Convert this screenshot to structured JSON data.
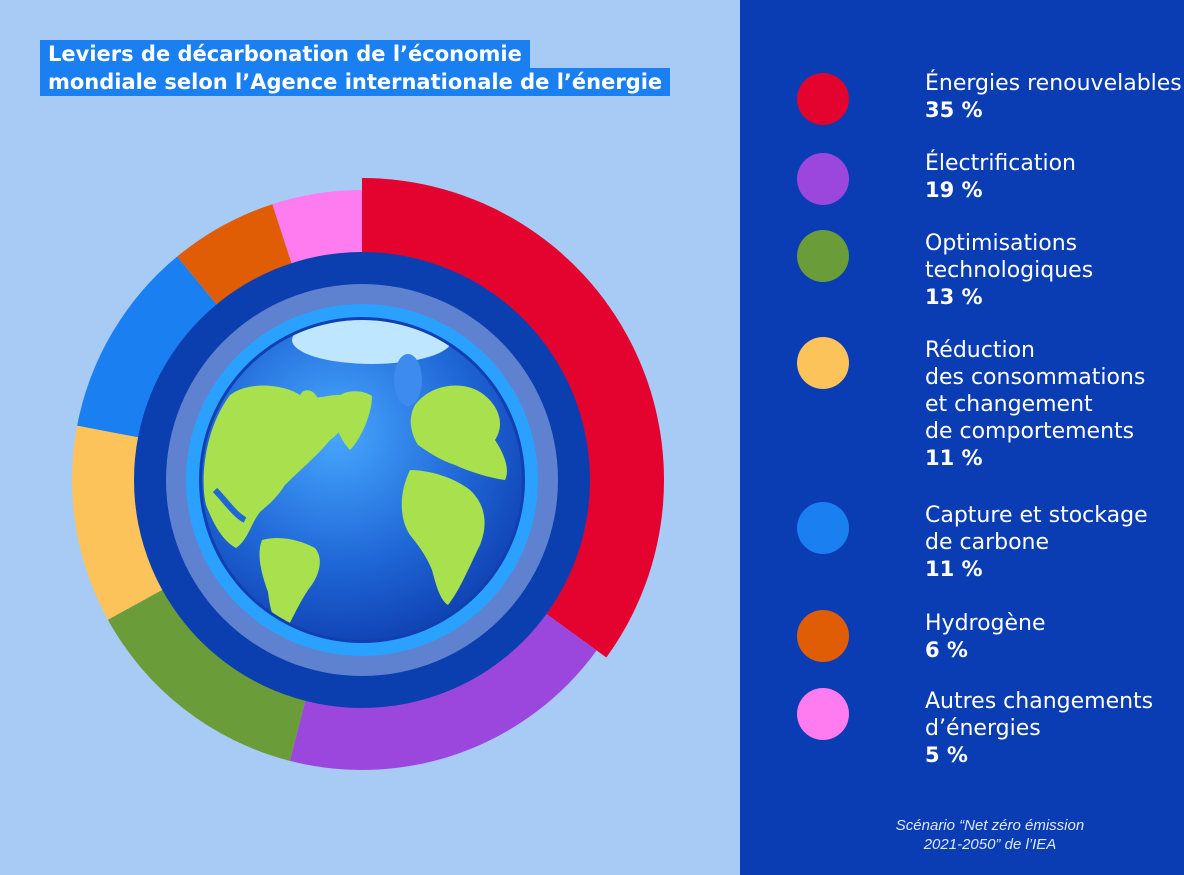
{
  "header": {
    "title_line1": "Leviers de décarbonation de l’économie",
    "title_line2": "mondiale selon l’Agence internationale de l’énergie"
  },
  "chart_data": {
    "type": "pie",
    "title": "Leviers de décarbonation de l’économie mondiale selon l’Agence internationale de l’énergie",
    "unit": "%",
    "legend_position": "right",
    "slices": [
      {
        "name": "Énergies renouvelables",
        "value": 35,
        "label": "35 %",
        "color": "#e4022e"
      },
      {
        "name": "Électrification",
        "value": 19,
        "label": "19 %",
        "color": "#9b47de"
      },
      {
        "name": "Optimisations technologiques",
        "value": 13,
        "label": "13 %",
        "color": "#6a9c3a"
      },
      {
        "name": "Réduction des consommations et changement de comportements",
        "value": 11,
        "label": "11 %",
        "color": "#fcc35a"
      },
      {
        "name": "Capture et stockage de carbone",
        "value": 11,
        "label": "11 %",
        "color": "#1a7ff0"
      },
      {
        "name": "Hydrogène",
        "value": 6,
        "label": "6 %",
        "color": "#e05d06"
      },
      {
        "name": "Autres changements d’énergies",
        "value": 5,
        "label": "5 %",
        "color": "#ff7bf0"
      }
    ]
  },
  "legend": [
    {
      "label": "Énergies renouvelables",
      "value": "35 %",
      "color": "#e4022e"
    },
    {
      "label": "Électrification",
      "value": "19 %",
      "color": "#9b47de"
    },
    {
      "label": "Optimisations\ntechnologiques",
      "value": "13 %",
      "color": "#6a9c3a"
    },
    {
      "label": "Réduction\ndes consommations\net changement\nde comportements",
      "value": "11 %",
      "color": "#fcc35a"
    },
    {
      "label": "Capture et stockage\nde carbone",
      "value": "11 %",
      "color": "#1a7ff0"
    },
    {
      "label": "Hydrogène",
      "value": "6 %",
      "color": "#e05d06"
    },
    {
      "label": "Autres changements\nd’énergies",
      "value": "5 %",
      "color": "#ff7bf0"
    }
  ],
  "source": "Scénario “Net zéro émission\n2021-2050” de l’IEA",
  "colors": {
    "background": "#a7cbf5",
    "panel": "#0a3cb3",
    "title_bg": "#1a7ff0",
    "inner_ring": "#0b3fb0",
    "globe_ocean": "#1f66d6",
    "land": "#a8e04e"
  },
  "icons": {
    "center": "earth-globe-icon"
  }
}
